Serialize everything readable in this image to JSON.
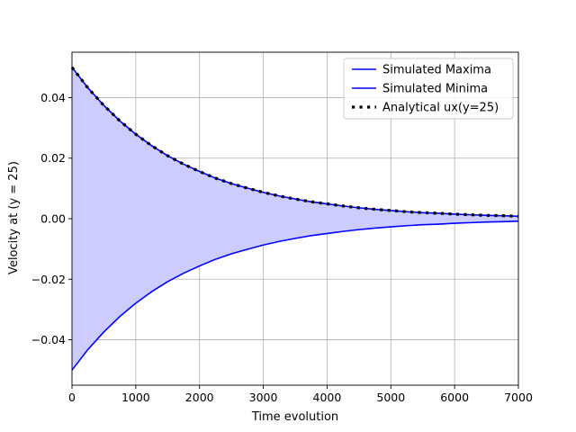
{
  "chart_data": {
    "type": "line",
    "xlabel": "Time evolution",
    "ylabel": "Velocity at (y = 25)",
    "xlim": [
      0,
      7000
    ],
    "ylim": [
      -0.055,
      0.055
    ],
    "xticks": [
      0,
      1000,
      2000,
      3000,
      4000,
      5000,
      6000,
      7000
    ],
    "xtick_labels": [
      "0",
      "1000",
      "2000",
      "3000",
      "4000",
      "5000",
      "6000",
      "7000"
    ],
    "yticks": [
      -0.04,
      -0.02,
      0.0,
      0.02,
      0.04
    ],
    "ytick_labels": [
      "−0.04",
      "−0.02",
      "0.00",
      "0.02",
      "0.04"
    ],
    "grid": true,
    "legend_position": "top-right",
    "fill_between": {
      "upper": "Simulated Maxima",
      "lower": "Simulated Minima",
      "color": "#ccccff"
    },
    "series": [
      {
        "name": "Simulated Maxima",
        "color": "#0000ff",
        "style": "solid",
        "x": [
          0,
          250,
          500,
          750,
          1000,
          1250,
          1500,
          1750,
          2000,
          2250,
          2500,
          2750,
          3000,
          3250,
          3500,
          3750,
          4000,
          4250,
          4500,
          4750,
          5000,
          5250,
          5500,
          5750,
          6000,
          6250,
          6500,
          6750,
          7000
        ],
        "values": [
          0.05,
          0.0432,
          0.0374,
          0.0323,
          0.0279,
          0.0241,
          0.0208,
          0.018,
          0.0156,
          0.0134,
          0.0116,
          0.0101,
          0.0087,
          0.0075,
          0.0065,
          0.0056,
          0.0049,
          0.0042,
          0.0036,
          0.0031,
          0.0027,
          0.0023,
          0.002,
          0.0018,
          0.0015,
          0.0013,
          0.0011,
          0.001,
          0.0008
        ]
      },
      {
        "name": "Simulated Minima",
        "color": "#0000ff",
        "style": "solid",
        "x": [
          0,
          250,
          500,
          750,
          1000,
          1250,
          1500,
          1750,
          2000,
          2250,
          2500,
          2750,
          3000,
          3250,
          3500,
          3750,
          4000,
          4250,
          4500,
          4750,
          5000,
          5250,
          5500,
          5750,
          6000,
          6250,
          6500,
          6750,
          7000
        ],
        "values": [
          -0.05,
          -0.0432,
          -0.0374,
          -0.0323,
          -0.0279,
          -0.0241,
          -0.0208,
          -0.018,
          -0.0156,
          -0.0134,
          -0.0116,
          -0.0101,
          -0.0087,
          -0.0075,
          -0.0065,
          -0.0056,
          -0.0049,
          -0.0042,
          -0.0036,
          -0.0031,
          -0.0027,
          -0.0023,
          -0.002,
          -0.0018,
          -0.0015,
          -0.0013,
          -0.0011,
          -0.001,
          -0.0008
        ]
      },
      {
        "name": "Analytical ux(y=25)",
        "color": "#000000",
        "style": "dotted",
        "x": [
          0,
          250,
          500,
          750,
          1000,
          1250,
          1500,
          1750,
          2000,
          2250,
          2500,
          2750,
          3000,
          3250,
          3500,
          3750,
          4000,
          4250,
          4500,
          4750,
          5000,
          5250,
          5500,
          5750,
          6000,
          6250,
          6500,
          6750,
          7000
        ],
        "values": [
          0.05,
          0.0432,
          0.0374,
          0.0323,
          0.0279,
          0.0241,
          0.0208,
          0.018,
          0.0156,
          0.0134,
          0.0116,
          0.0101,
          0.0087,
          0.0075,
          0.0065,
          0.0056,
          0.0049,
          0.0042,
          0.0036,
          0.0031,
          0.0027,
          0.0023,
          0.002,
          0.0018,
          0.0015,
          0.0013,
          0.0011,
          0.001,
          0.0008
        ]
      }
    ]
  }
}
